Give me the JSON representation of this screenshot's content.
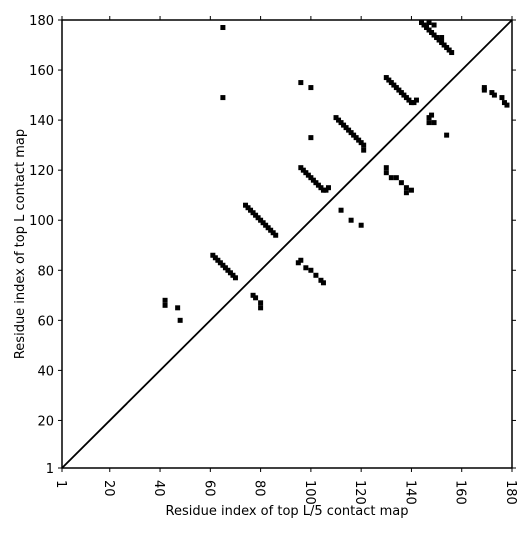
{
  "chart_data": {
    "type": "scatter",
    "xlabel": "Residue index of top L/5 contact map",
    "ylabel": "Residue index of top L contact map",
    "xlim": [
      1,
      180
    ],
    "ylim": [
      1,
      180
    ],
    "xticks": [
      1,
      20,
      40,
      60,
      80,
      100,
      120,
      140,
      160,
      180
    ],
    "yticks": [
      1,
      20,
      40,
      60,
      80,
      100,
      120,
      140,
      160,
      180
    ],
    "series": [
      {
        "color": "#000000",
        "x": [
          65,
          65,
          42,
          42,
          47,
          48,
          61,
          62,
          63,
          64,
          65,
          66,
          67,
          68,
          69,
          70,
          74,
          75,
          76,
          77,
          78,
          79,
          80,
          81,
          82,
          83,
          84,
          85,
          86,
          96,
          97,
          98,
          99,
          100,
          101,
          102,
          103,
          104,
          105,
          106,
          107,
          110,
          111,
          112,
          113,
          114,
          115,
          116,
          117,
          118,
          119,
          120,
          121,
          121,
          130,
          131,
          132,
          133,
          134,
          135,
          136,
          137,
          138,
          139,
          140,
          141,
          142,
          144,
          145,
          146,
          147,
          148,
          149,
          150,
          151,
          152,
          153,
          154,
          155,
          156,
          147,
          149,
          152,
          96,
          100,
          100,
          130,
          130,
          132,
          134,
          136,
          138,
          138,
          140,
          112,
          116,
          120,
          95,
          96,
          98,
          100,
          102,
          104,
          105,
          77,
          78,
          80,
          80,
          147,
          148,
          147,
          149,
          154,
          169,
          169,
          172,
          173,
          176,
          177,
          178
        ],
        "y": [
          177,
          149,
          68,
          66,
          65,
          60,
          86,
          85,
          84,
          83,
          82,
          81,
          80,
          79,
          78,
          77,
          106,
          105,
          104,
          103,
          102,
          101,
          100,
          99,
          98,
          97,
          96,
          95,
          94,
          121,
          120,
          119,
          118,
          117,
          116,
          115,
          114,
          113,
          112,
          112,
          113,
          141,
          140,
          139,
          138,
          137,
          136,
          135,
          134,
          133,
          132,
          131,
          130,
          128,
          157,
          156,
          155,
          154,
          153,
          152,
          151,
          150,
          149,
          148,
          147,
          147,
          148,
          179,
          178,
          177,
          176,
          175,
          174,
          173,
          172,
          171,
          170,
          169,
          168,
          167,
          179,
          178,
          173,
          155,
          153,
          133,
          121,
          119,
          117,
          117,
          115,
          113,
          111,
          112,
          104,
          100,
          98,
          83,
          84,
          81,
          80,
          78,
          76,
          75,
          70,
          69,
          67,
          65,
          141,
          142,
          139,
          139,
          134,
          153,
          152,
          151,
          150,
          149,
          147,
          146
        ]
      }
    ]
  }
}
